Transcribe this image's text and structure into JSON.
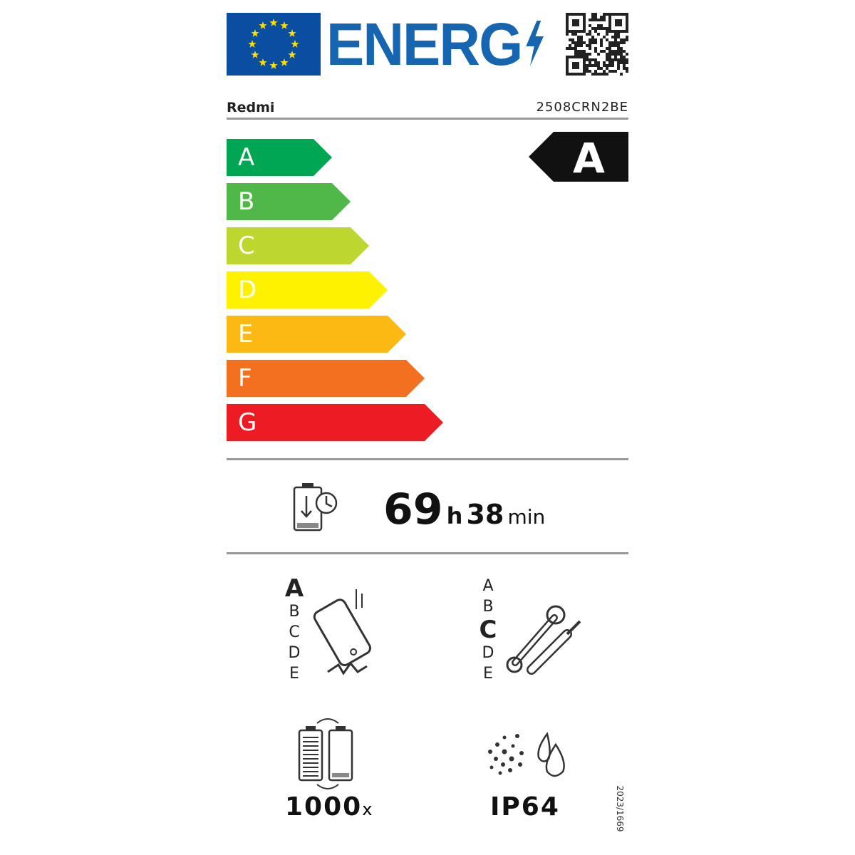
{
  "header": {
    "logo_text": "ENERG",
    "brand": "Redmi",
    "model": "2508CRN2BE"
  },
  "scale": {
    "classes": [
      "A",
      "B",
      "C",
      "D",
      "E",
      "F",
      "G"
    ],
    "colors": [
      "#00a651",
      "#50b848",
      "#bed630",
      "#fff200",
      "#fdb913",
      "#f37021",
      "#ed1c24"
    ],
    "rating": "A"
  },
  "battery_endurance": {
    "hours": "69",
    "h_unit": "h",
    "minutes": "38",
    "min_unit": "min"
  },
  "drop_resistance": {
    "classes": [
      "A",
      "B",
      "C",
      "D",
      "E"
    ],
    "rating": "A"
  },
  "repairability": {
    "classes": [
      "A",
      "B",
      "C",
      "D",
      "E"
    ],
    "rating": "C"
  },
  "battery_cycles": {
    "value": "1000",
    "unit": "x"
  },
  "ingress": {
    "value": "IP64"
  },
  "regulation": "2023/1669"
}
